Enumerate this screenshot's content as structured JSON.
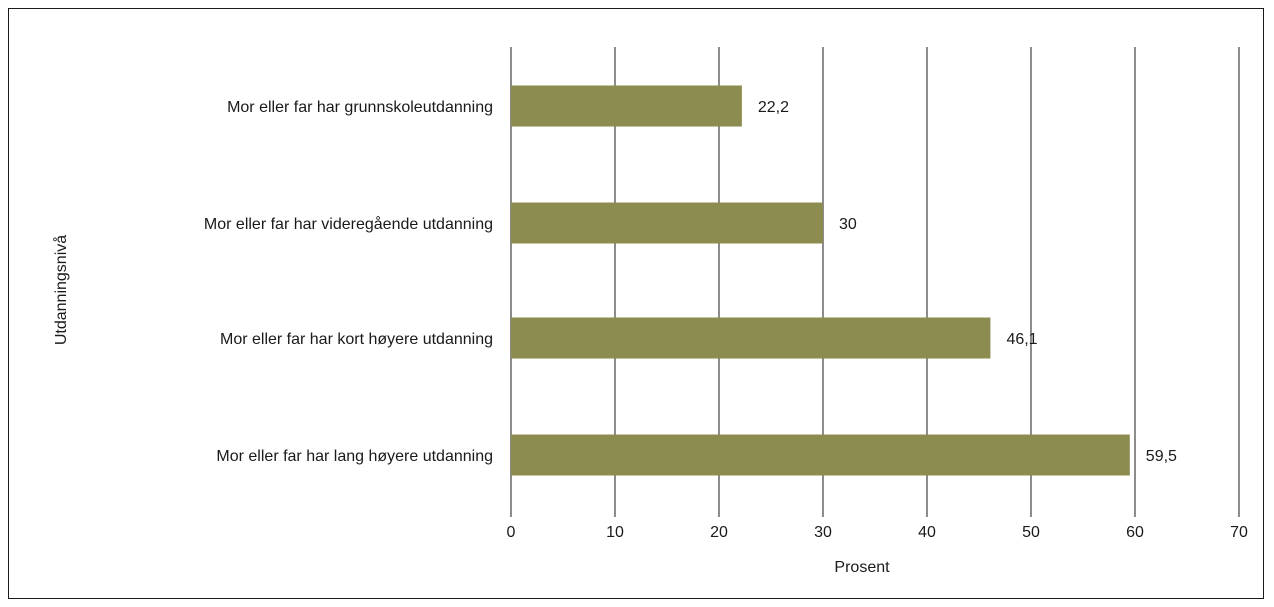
{
  "chart_data": {
    "type": "bar",
    "orientation": "horizontal",
    "categories": [
      "Mor eller far har grunnskoleutdanning",
      "Mor eller far har videregående utdanning",
      "Mor eller far har kort høyere utdanning",
      "Mor eller far har lang høyere utdanning"
    ],
    "values": [
      22.2,
      30,
      46.1,
      59.5
    ],
    "value_labels": [
      "22,2",
      "30",
      "46,1",
      "59,5"
    ],
    "xlabel": "Prosent",
    "ylabel": "Utdanningsnivå",
    "xlim": [
      0,
      70
    ],
    "xticks": [
      "0",
      "10",
      "20",
      "30",
      "40",
      "50",
      "60",
      "70"
    ],
    "grid": "vertical",
    "bar_color": "#8c8b50"
  }
}
